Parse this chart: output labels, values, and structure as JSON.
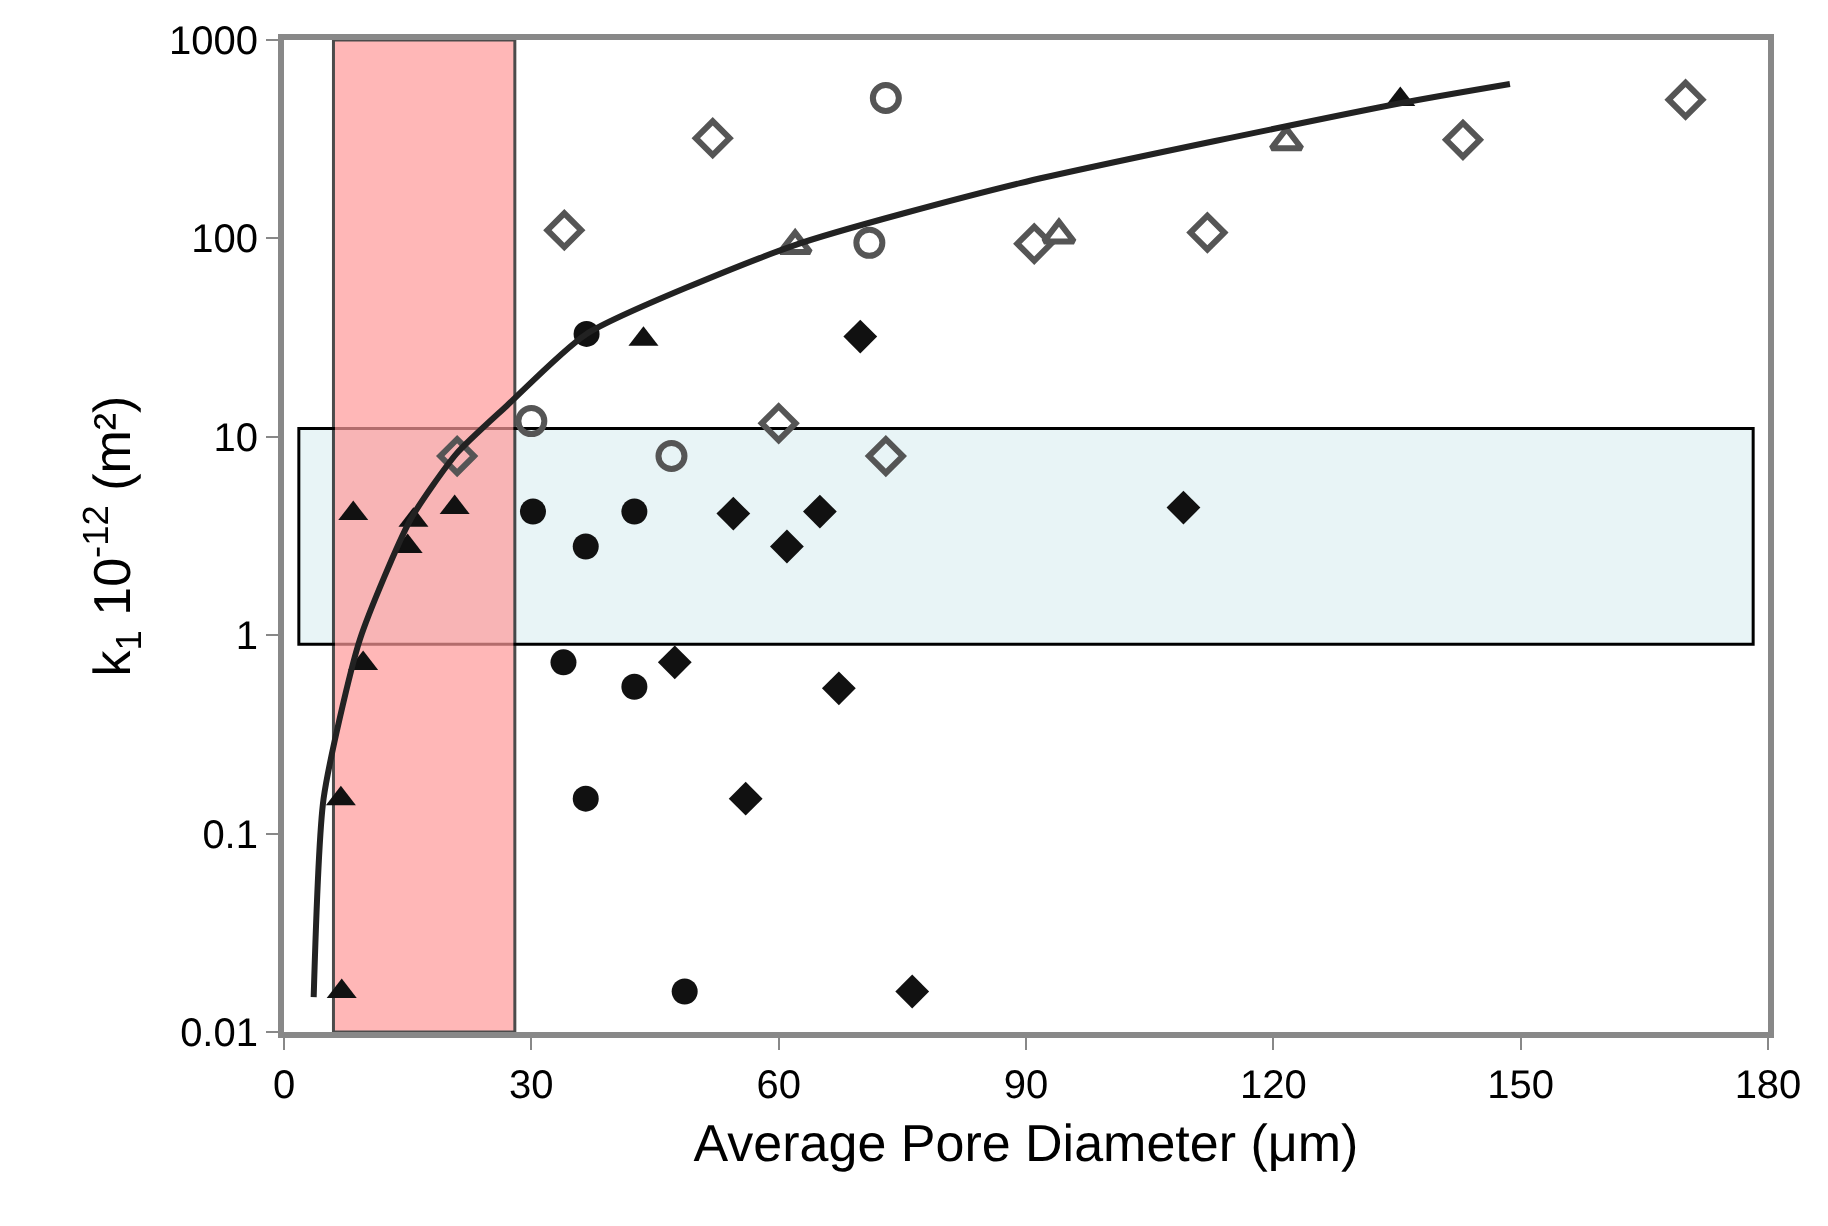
{
  "chart_data": {
    "type": "scatter",
    "xlabel": "Average Pore Diameter (μm)",
    "ylabel": "k$_{1}$ 10$^{-12}$ (m²)",
    "xlim": [
      0,
      180
    ],
    "xticks": [
      0,
      30,
      60,
      90,
      120,
      150,
      180
    ],
    "ylim": [
      0.01,
      1000
    ],
    "yticks": [
      0.01,
      0.1,
      1,
      10,
      100,
      1000
    ],
    "log": "y",
    "grid": false,
    "series": [
      {
        "color": "#555555",
        "marker": "circle",
        "x": [
          30,
          47,
          71,
          73
        ],
        "values": [
          12,
          8,
          95,
          510
        ]
      },
      {
        "color": "#555555",
        "marker": "diamond",
        "x": [
          21,
          34,
          52,
          60,
          73,
          91,
          112,
          143,
          170
        ],
        "values": [
          8,
          110,
          320,
          11.7,
          8,
          94,
          107,
          314,
          500
        ]
      },
      {
        "color": "#555555",
        "marker": "triangle",
        "x": [
          62,
          94,
          121.6
        ],
        "values": [
          92,
          104,
          307
        ]
      },
      {
        "color": "#111111",
        "marker": "circle",
        "x": [
          30.2,
          33.9,
          36.6,
          36.6,
          36.7,
          42.5,
          42.5,
          48.6
        ],
        "values": [
          4.2,
          0.73,
          2.8,
          0.15,
          33,
          4.2,
          0.55,
          0.016
        ]
      },
      {
        "color": "#111111",
        "marker": "diamond",
        "x": [
          47.4,
          54.5,
          56,
          61,
          65,
          67.3,
          69.9,
          76.2,
          109.1
        ],
        "values": [
          0.73,
          4.1,
          0.15,
          2.8,
          4.2,
          0.54,
          32,
          0.016,
          4.4
        ]
      },
      {
        "color": "#111111",
        "marker": "triangle",
        "x": [
          6.9,
          7,
          8.4,
          9.6,
          15,
          15.7,
          20.7,
          43.6,
          135.4
        ],
        "values": [
          0.15,
          0.016,
          4.1,
          0.72,
          2.8,
          3.8,
          4.4,
          31,
          502
        ]
      },
      {
        "type": "line",
        "color": "#222222",
        "marker": "none",
        "x": [
          3.6,
          4.8,
          9.2,
          15.3,
          20.9,
          27,
          36.7,
          61.8,
          89.3,
          135.4,
          148.7
        ],
        "values": [
          0.015,
          0.15,
          0.95,
          3.8,
          8.2,
          14.3,
          33,
          92,
          190,
          480,
          600
        ]
      }
    ],
    "bands": [
      {
        "axis": "y",
        "from": 0.9,
        "to": 11,
        "color": "#e8f4f6"
      },
      {
        "axis": "x",
        "from": 6,
        "to": 28,
        "color": "#ff9a9a"
      }
    ]
  }
}
